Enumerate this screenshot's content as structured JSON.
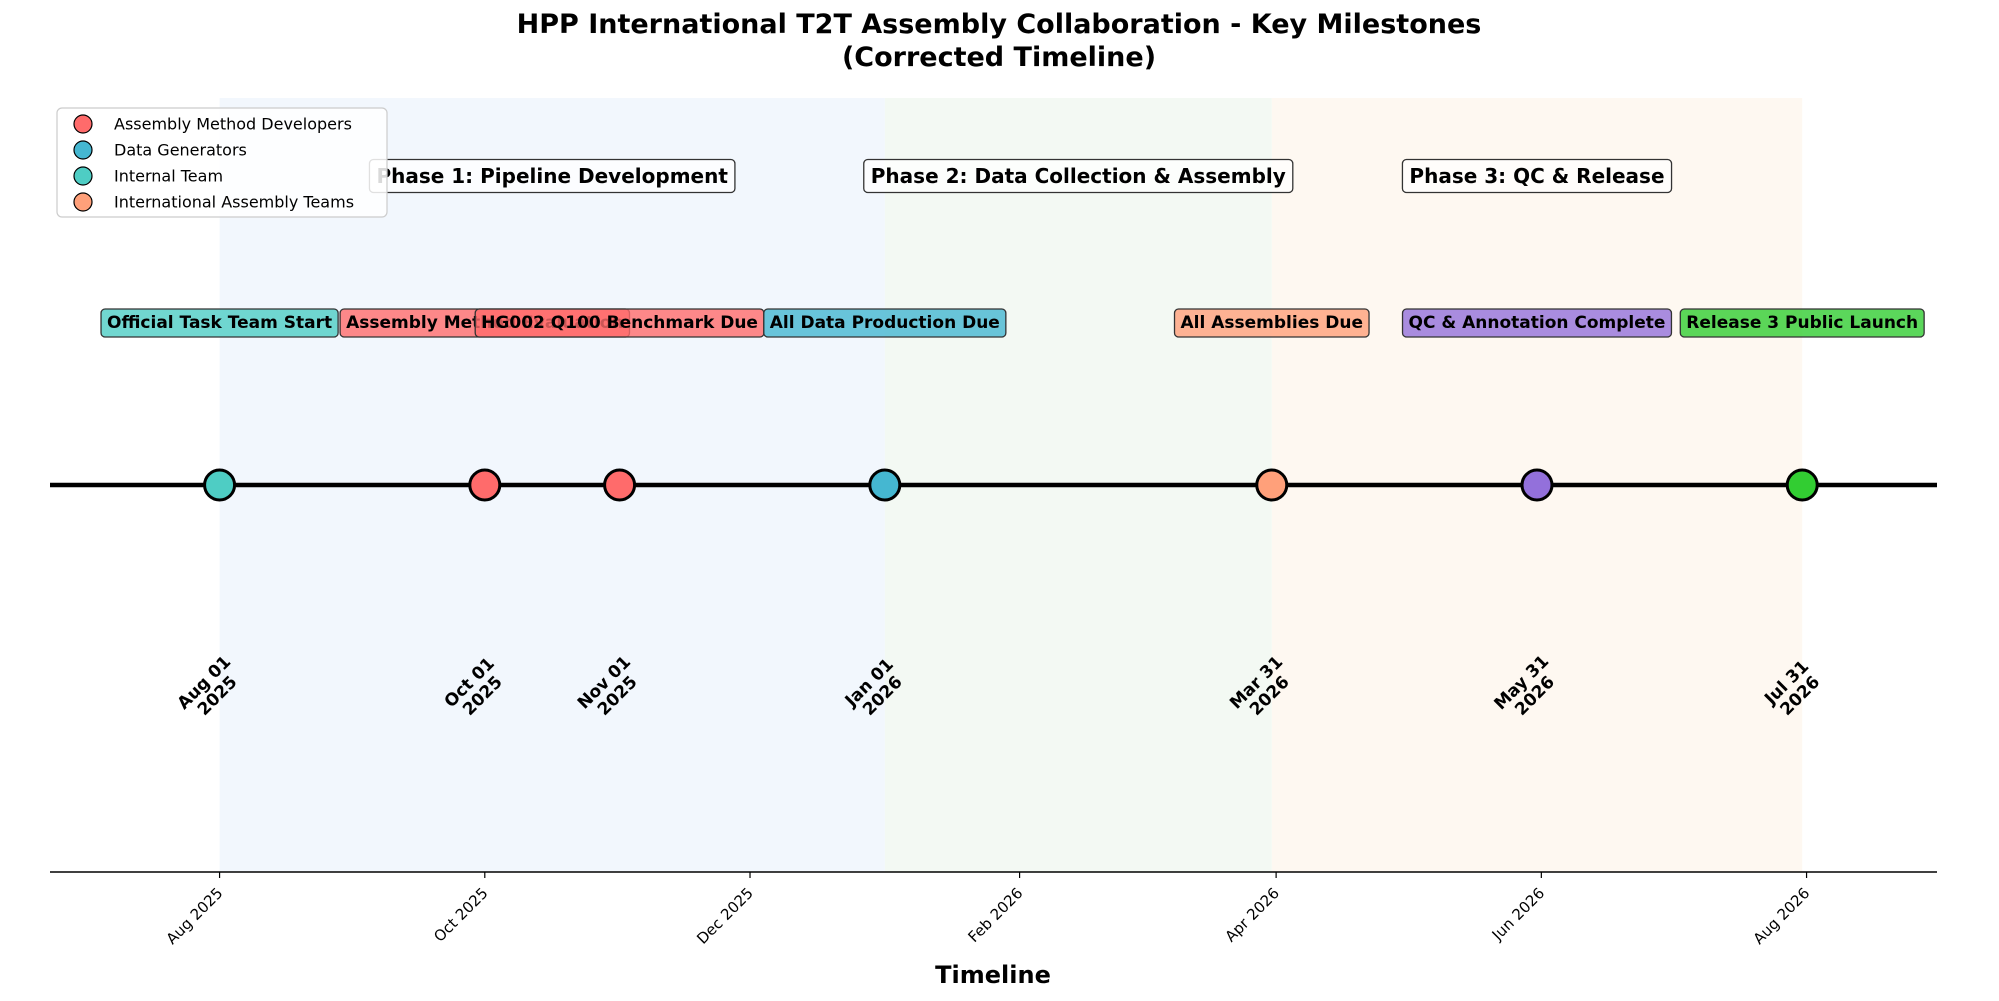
{
  "chart_data": {
    "type": "timeline",
    "title_line1": "HPP International T2T Assembly Collaboration - Key Milestones",
    "title_line2": "(Corrected Timeline)",
    "xlabel": "Timeline",
    "xlim": [
      "2025-06-23",
      "2026-08-31"
    ],
    "x_ticks": [
      {
        "date": "2025-08-01",
        "label": "Aug 2025"
      },
      {
        "date": "2025-10-01",
        "label": "Oct 2025"
      },
      {
        "date": "2025-12-01",
        "label": "Dec 2025"
      },
      {
        "date": "2026-02-01",
        "label": "Feb 2026"
      },
      {
        "date": "2026-04-01",
        "label": "Apr 2026"
      },
      {
        "date": "2026-06-01",
        "label": "Jun 2026"
      },
      {
        "date": "2026-08-01",
        "label": "Aug 2026"
      }
    ],
    "phases": [
      {
        "name": "Phase 1: Pipeline Development",
        "start": "2025-08-01",
        "end": "2026-01-01",
        "color": "#e8f0fb"
      },
      {
        "name": "Phase 2: Data Collection & Assembly",
        "start": "2026-01-01",
        "end": "2026-03-31",
        "color": "#eaf4ea"
      },
      {
        "name": "Phase 3: QC & Release",
        "start": "2026-03-31",
        "end": "2026-07-31",
        "color": "#fdf3e6"
      }
    ],
    "milestones": [
      {
        "date": "2025-08-01",
        "date_line1": "Aug 01",
        "date_line2": "2025",
        "label": "Official Task Team Start",
        "color": "#4ECDC4"
      },
      {
        "date": "2025-10-01",
        "date_line1": "Oct 01",
        "date_line2": "2025",
        "label": "Assembly Method Evaluation",
        "color": "#FF6B6B"
      },
      {
        "date": "2025-11-01",
        "date_line1": "Nov 01",
        "date_line2": "2025",
        "label": "HG002 Q100 Benchmark Due",
        "color": "#FF6B6B"
      },
      {
        "date": "2026-01-01",
        "date_line1": "Jan 01",
        "date_line2": "2026",
        "label": "All Data Production Due",
        "color": "#45B7D1"
      },
      {
        "date": "2026-03-31",
        "date_line1": "Mar 31",
        "date_line2": "2026",
        "label": "All Assemblies Due",
        "color": "#FFA07A"
      },
      {
        "date": "2026-05-31",
        "date_line1": "May 31",
        "date_line2": "2026",
        "label": "QC & Annotation Complete",
        "color": "#9370DB"
      },
      {
        "date": "2026-07-31",
        "date_line1": "Jul 31",
        "date_line2": "2026",
        "label": "Release 3 Public Launch",
        "color": "#32CD32"
      }
    ],
    "legend": {
      "placement": "upper-left",
      "entries": [
        {
          "name": "Assembly Method Developers",
          "color": "#FF6B6B"
        },
        {
          "name": "Data Generators",
          "color": "#45B7D1"
        },
        {
          "name": "Internal Team",
          "color": "#4ECDC4"
        },
        {
          "name": "International Assembly Teams",
          "color": "#FFA07A"
        }
      ]
    },
    "grid": false
  }
}
